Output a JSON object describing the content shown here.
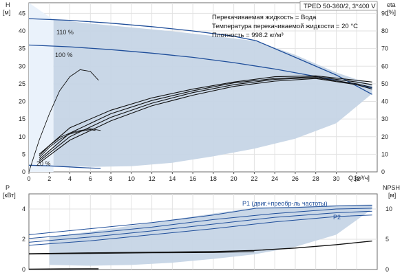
{
  "chart_data": [
    {
      "type": "line",
      "panel": "head",
      "title": "TPED 50-360/2, 3*400 V",
      "info_lines": [
        "Перекачиваемая жидкость = Вода",
        "Температура перекачиваемой жидкости = 20 °C",
        "Плотность = 998.2 кг/м³"
      ],
      "xlabel": "Q [м³/ч]",
      "ylabel_left": [
        "H",
        "[м]"
      ],
      "ylabel_right": [
        "eta",
        "[%]"
      ],
      "xlim": [
        0,
        34
      ],
      "ylim_left": [
        0,
        48
      ],
      "ylim_right": [
        0,
        96
      ],
      "x_ticks": [
        0,
        2,
        4,
        6,
        8,
        10,
        12,
        14,
        16,
        18,
        20,
        22,
        24,
        26,
        28,
        30,
        32
      ],
      "y_ticks_left": [
        0,
        5,
        10,
        15,
        20,
        25,
        30,
        35,
        40,
        45
      ],
      "y_ticks_right": [
        0,
        10,
        20,
        30,
        40,
        50,
        60,
        70,
        80,
        90
      ],
      "grid": true,
      "region": {
        "name": "",
        "upper": [
          [
            2.4,
            43.2
          ],
          [
            6,
            42.1
          ],
          [
            10,
            41
          ],
          [
            14,
            39.9
          ],
          [
            18,
            38.6
          ],
          [
            22.2,
            37.1
          ],
          [
            26,
            33.2
          ],
          [
            30,
            28.2
          ],
          [
            33.5,
            24.8
          ]
        ],
        "lower": [
          [
            2.4,
            1.8
          ],
          [
            6,
            1.4
          ],
          [
            10,
            1.6
          ],
          [
            14,
            2.6
          ],
          [
            18,
            4.4
          ],
          [
            22,
            6.6
          ],
          [
            26,
            9.4
          ],
          [
            30,
            13.8
          ],
          [
            33.5,
            22.2
          ]
        ]
      },
      "series": [
        {
          "name": "",
          "label": "110 %",
          "axis": "left",
          "points": [
            [
              0,
              43.5
            ],
            [
              4,
              43
            ],
            [
              8,
              42.2
            ],
            [
              12,
              41.2
            ],
            [
              16,
              40
            ],
            [
              20,
              38.5
            ],
            [
              22.2,
              37.2
            ],
            [
              26,
              32.5
            ],
            [
              30,
              27.5
            ],
            [
              33.5,
              22
            ]
          ]
        },
        {
          "name": "",
          "label": "100 %",
          "axis": "left",
          "points": [
            [
              0,
              36
            ],
            [
              4,
              35.5
            ],
            [
              8,
              34.7
            ],
            [
              12,
              33.7
            ],
            [
              16,
              32.5
            ],
            [
              20,
              31
            ],
            [
              24,
              29.2
            ],
            [
              28,
              27.1
            ],
            [
              31,
              25.3
            ],
            [
              33.5,
              23.8
            ]
          ]
        },
        {
          "name": "",
          "label": "20 %",
          "axis": "left",
          "points": [
            [
              0,
              1.9
            ],
            [
              2,
              1.7
            ],
            [
              4,
              1.4
            ],
            [
              6,
              1.1
            ],
            [
              7,
              1.0
            ]
          ]
        },
        {
          "name": "",
          "axis": "right",
          "points": [
            [
              0,
              0
            ],
            [
              1,
              18
            ],
            [
              2,
              33
            ],
            [
              3,
              46
            ],
            [
              4,
              54
            ],
            [
              5,
              58
            ],
            [
              6,
              57
            ],
            [
              6.8,
              52
            ]
          ]
        },
        {
          "name": "",
          "axis": "right",
          "points": [
            [
              1,
              8
            ],
            [
              2,
              14
            ],
            [
              3,
              18.5
            ],
            [
              4,
              21.5
            ],
            [
              5,
              23
            ],
            [
              6,
              24
            ],
            [
              6.5,
              23.5
            ]
          ]
        },
        {
          "name": "",
          "axis": "right",
          "points": [
            [
              1,
              9
            ],
            [
              2,
              15
            ],
            [
              3,
              19.5
            ],
            [
              4,
              22
            ],
            [
              5,
              23.5
            ],
            [
              6,
              24.5
            ],
            [
              7,
              23.5
            ]
          ]
        },
        {
          "name": "",
          "axis": "right",
          "points": [
            [
              1,
              10
            ],
            [
              4,
              25
            ],
            [
              8,
              35
            ],
            [
              12,
              42
            ],
            [
              16,
              47
            ],
            [
              20,
              51
            ],
            [
              24,
              54
            ],
            [
              28,
              54.5
            ],
            [
              32,
              52
            ],
            [
              33.5,
              51
            ]
          ]
        },
        {
          "name": "",
          "axis": "right",
          "points": [
            [
              1,
              7
            ],
            [
              4,
              22
            ],
            [
              8,
              33
            ],
            [
              12,
              40.5
            ],
            [
              16,
              46
            ],
            [
              20,
              50.5
            ],
            [
              24,
              53
            ],
            [
              28,
              54
            ],
            [
              32,
              51
            ],
            [
              33.5,
              49.5
            ]
          ]
        },
        {
          "name": "",
          "axis": "right",
          "points": [
            [
              1,
              6
            ],
            [
              4,
              20
            ],
            [
              8,
              31
            ],
            [
              12,
              39
            ],
            [
              16,
              45
            ],
            [
              20,
              49.5
            ],
            [
              24,
              52.5
            ],
            [
              28,
              53.5
            ],
            [
              32,
              50
            ],
            [
              33.5,
              48
            ]
          ]
        },
        {
          "name": "",
          "axis": "right",
          "points": [
            [
              1,
              5
            ],
            [
              4,
              18
            ],
            [
              8,
              29
            ],
            [
              12,
              37.5
            ],
            [
              16,
              43.5
            ],
            [
              20,
              48.5
            ],
            [
              24,
              51.5
            ],
            [
              28,
              53
            ],
            [
              32,
              49.5
            ],
            [
              33.5,
              47
            ]
          ]
        }
      ]
    },
    {
      "type": "line",
      "panel": "power",
      "xlim": [
        0,
        34
      ],
      "ylim_left": [
        0,
        5
      ],
      "ylim_right": [
        0,
        12.5
      ],
      "ylabel_left": [
        "P",
        "[кВт]"
      ],
      "ylabel_right": [
        "NPSH",
        "[м]"
      ],
      "y_ticks_left": [
        0,
        2,
        4
      ],
      "y_ticks_right": [
        0,
        5,
        10
      ],
      "grid": true,
      "region": {
        "name": "",
        "upper": [
          [
            2,
            2.15
          ],
          [
            6,
            2.5
          ],
          [
            10,
            2.9
          ],
          [
            14,
            3.3
          ],
          [
            18,
            3.7
          ],
          [
            22.2,
            4.1
          ],
          [
            26,
            4.15
          ],
          [
            30,
            4.25
          ],
          [
            33.5,
            4.3
          ]
        ],
        "lower": [
          [
            2,
            0.3
          ],
          [
            6,
            0.25
          ],
          [
            10,
            0.3
          ],
          [
            14,
            0.45
          ],
          [
            18,
            0.7
          ],
          [
            22,
            1.0
          ],
          [
            26,
            1.5
          ],
          [
            30,
            2.3
          ],
          [
            33.5,
            4.0
          ]
        ]
      },
      "series": [
        {
          "name": "P1 (двиг.+преобр-ль частоты)",
          "axis": "left",
          "points": [
            [
              0,
              2.3
            ],
            [
              6,
              2.7
            ],
            [
              12,
              3.1
            ],
            [
              18,
              3.6
            ],
            [
              22.2,
              4.05
            ],
            [
              26,
              4.1
            ],
            [
              30,
              4.2
            ],
            [
              33.5,
              4.25
            ]
          ]
        },
        {
          "name": "",
          "axis": "left",
          "points": [
            [
              0,
              2.05
            ],
            [
              6,
              2.4
            ],
            [
              12,
              2.8
            ],
            [
              18,
              3.3
            ],
            [
              24,
              3.7
            ],
            [
              30,
              4.0
            ],
            [
              33.5,
              4.05
            ]
          ]
        },
        {
          "name": "P2",
          "axis": "left",
          "points": [
            [
              0,
              1.8
            ],
            [
              6,
              2.15
            ],
            [
              12,
              2.55
            ],
            [
              18,
              3.0
            ],
            [
              24,
              3.45
            ],
            [
              30,
              3.75
            ],
            [
              33.5,
              3.85
            ]
          ]
        },
        {
          "name": "",
          "axis": "left",
          "points": [
            [
              0,
              1.6
            ],
            [
              6,
              1.9
            ],
            [
              12,
              2.3
            ],
            [
              18,
              2.7
            ],
            [
              24,
              3.15
            ],
            [
              30,
              3.5
            ],
            [
              33.5,
              3.6
            ]
          ]
        },
        {
          "name": "",
          "axis": "right",
          "points": [
            [
              0,
              2.6
            ],
            [
              6,
              2.75
            ],
            [
              12,
              2.85
            ],
            [
              18,
              2.95
            ],
            [
              22,
              3.15
            ],
            [
              26,
              3.55
            ],
            [
              30,
              4.1
            ],
            [
              33.5,
              4.7
            ]
          ]
        },
        {
          "name": "",
          "axis": "right",
          "points": [
            [
              0,
              2.55
            ],
            [
              6,
              2.65
            ],
            [
              12,
              2.75
            ],
            [
              18,
              2.8
            ],
            [
              22,
              2.95
            ]
          ]
        },
        {
          "name": "",
          "axis": "left",
          "points": [
            [
              0,
              0.02
            ],
            [
              3,
              0.03
            ],
            [
              6.8,
              0.04
            ]
          ]
        }
      ]
    }
  ]
}
